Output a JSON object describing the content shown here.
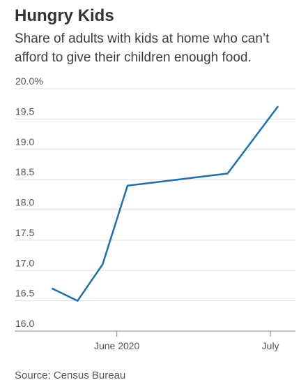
{
  "header": {
    "title": "Hungry Kids",
    "subtitle": "Share of adults with kids at home who can’t afford to give their children enough food."
  },
  "footer": {
    "source": "Source: Census Bureau"
  },
  "colors": {
    "line": "#1f6fa6",
    "grid": "#dddddd",
    "axis_text": "#555555",
    "title_text": "#333333"
  },
  "chart_data": {
    "type": "line",
    "title": "Hungry Kids",
    "subtitle": "Share of adults with kids at home who can’t afford to give their children enough food.",
    "xlabel": "",
    "ylabel": "",
    "ylim": [
      16.0,
      20.0
    ],
    "yticks": [
      16.0,
      16.5,
      17.0,
      17.5,
      18.0,
      18.5,
      19.0,
      19.5,
      20.0
    ],
    "ytick_labels": [
      "16.0",
      "16.5",
      "17.0",
      "17.5",
      "18.0",
      "18.5",
      "19.0",
      "19.5",
      "20.0%"
    ],
    "xlim": [
      "2020-05-11",
      "2020-07-21"
    ],
    "xticks": [
      "2020-06-01",
      "2020-07-14"
    ],
    "xtick_labels": [
      "June 2020",
      "July"
    ],
    "grid": true,
    "series": [
      {
        "x": [
          "2020-05-14",
          "2020-05-21",
          "2020-05-28",
          "2020-06-04",
          "2020-06-11",
          "2020-06-18",
          "2020-06-25",
          "2020-07-02",
          "2020-07-09",
          "2020-07-16"
        ],
        "values": [
          16.7,
          16.5,
          17.1,
          18.4,
          18.45,
          18.5,
          18.55,
          18.6,
          19.15,
          19.7
        ]
      }
    ],
    "source": "Source: Census Bureau"
  }
}
